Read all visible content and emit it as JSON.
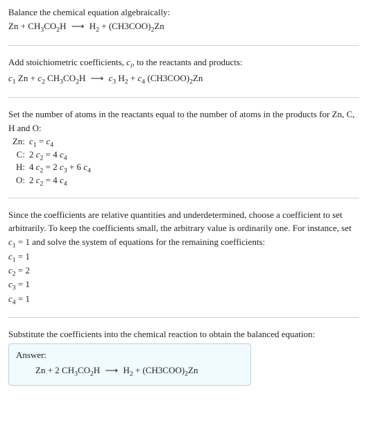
{
  "colors": {
    "text": "#222222",
    "separator": "#d0d0d0",
    "answer_bg": "#f0faff",
    "answer_border": "#b8d4dc",
    "page_bg": "#ffffff"
  },
  "typography": {
    "font_family": "Georgia, Times New Roman, serif",
    "base_fontsize": 13
  },
  "sec_intro": {
    "title": "Balance the chemical equation algebraically:",
    "eq_parts": {
      "zn": "Zn",
      "plus1": " + ",
      "ch3": "CH",
      "s3": "3",
      "co2h": "CO",
      "s2": "2",
      "h": "H",
      "arrow": "⟶",
      "h2": "H",
      "h2s": "2",
      "plus2": " + ",
      "prod": "(CH3COO)",
      "prods": "2",
      "zn2": "Zn"
    }
  },
  "sec_stoich": {
    "text_a": "Add stoichiometric coefficients, ",
    "ci": "c",
    "ci_sub": "i",
    "text_b": ", to the reactants and products:",
    "eq_parts": {
      "c1": "c",
      "c1s": "1",
      "zn": " Zn + ",
      "c2": "c",
      "c2s": "2",
      "ch3": " CH",
      "s3": "3",
      "co2h": "CO",
      "s2": "2",
      "h": "H",
      "arrow": "⟶",
      "c3": "c",
      "c3s": "3",
      "h2": " H",
      "h2s": "2",
      "plus": " + ",
      "c4": "c",
      "c4s": "4",
      "prod": " (CH3COO)",
      "prods": "2",
      "zn2": "Zn"
    }
  },
  "sec_atoms": {
    "text": "Set the number of atoms in the reactants equal to the number of atoms in the products for Zn, C, H and O:",
    "rows": [
      {
        "label": "Zn:",
        "c_a": "c",
        "s_a": "1",
        "mid": " = ",
        "c_b": "c",
        "s_b": "4",
        "rest": ""
      },
      {
        "label": "C:",
        "pre": "2 ",
        "c_a": "c",
        "s_a": "2",
        "mid": " = 4 ",
        "c_b": "c",
        "s_b": "4",
        "rest": ""
      },
      {
        "label": "H:",
        "pre": "4 ",
        "c_a": "c",
        "s_a": "2",
        "mid": " = 2 ",
        "c_b": "c",
        "s_b": "3",
        "mid2": " + 6 ",
        "c_c": "c",
        "s_c": "4"
      },
      {
        "label": "O:",
        "pre": "2 ",
        "c_a": "c",
        "s_a": "2",
        "mid": " = 4 ",
        "c_b": "c",
        "s_b": "4",
        "rest": ""
      }
    ]
  },
  "sec_choose": {
    "text_a": "Since the coefficients are relative quantities and underdetermined, choose a coefficient to set arbitrarily. To keep the coefficients small, the arbitrary value is ordinarily one. For instance, set ",
    "c1": "c",
    "c1s": "1",
    "text_b": " = 1 and solve the system of equations for the remaining coefficients:",
    "coefs": [
      {
        "c": "c",
        "s": "1",
        "eq": " = 1"
      },
      {
        "c": "c",
        "s": "2",
        "eq": " = 2"
      },
      {
        "c": "c",
        "s": "3",
        "eq": " = 1"
      },
      {
        "c": "c",
        "s": "4",
        "eq": " = 1"
      }
    ]
  },
  "sec_final": {
    "text": "Substitute the coefficients into the chemical reaction to obtain the balanced equation:",
    "answer_label": "Answer:",
    "eq_parts": {
      "zn": "Zn + 2 CH",
      "s3": "3",
      "co2h": "CO",
      "s2": "2",
      "h": "H",
      "arrow": "⟶",
      "h2": " H",
      "h2s": "2",
      "plus": " + (CH3COO)",
      "prods": "2",
      "zn2": "Zn"
    }
  }
}
